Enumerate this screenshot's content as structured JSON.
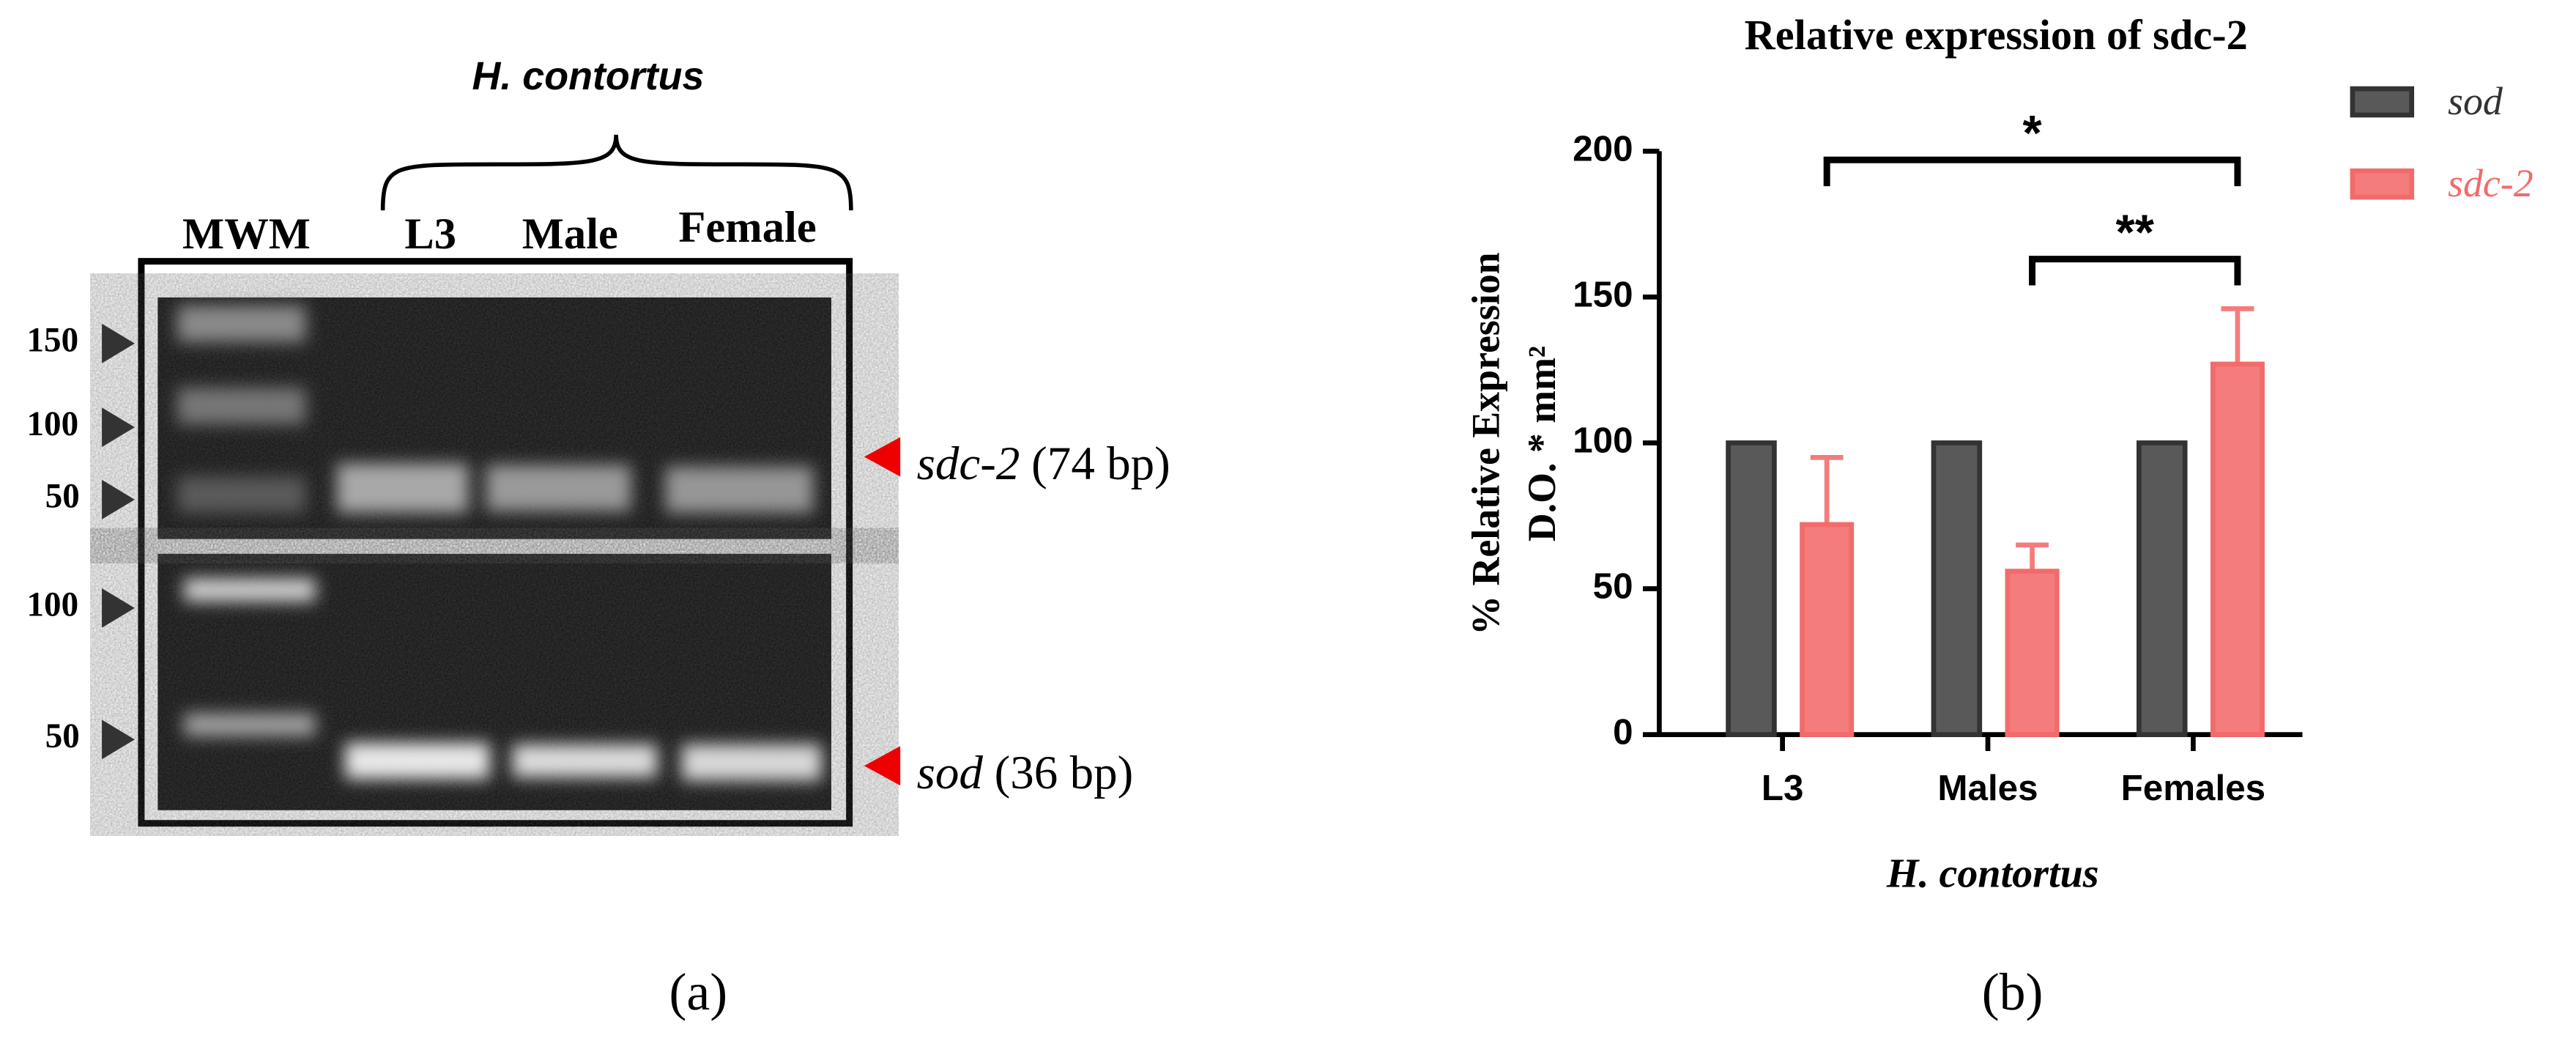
{
  "panel_labels": [
    "(a)",
    "(b)"
  ],
  "gel": {
    "species": "H. contortus",
    "lanes": [
      "MWM",
      "L3",
      "Male",
      "Female"
    ],
    "markers_upper": [
      "150",
      "100",
      "50"
    ],
    "markers_lower": [
      "100",
      "50"
    ],
    "products": [
      {
        "gene": "sdc-2",
        "size": "(74 bp)"
      },
      {
        "gene": "sod",
        "size": "(36 bp)"
      }
    ]
  },
  "chart_data": {
    "type": "bar",
    "title": "Relative expression of sdc-2",
    "ylabel": [
      "% Relative Expression",
      "D.O. * mm²"
    ],
    "xlabel": "H. contortus",
    "categories": [
      "L3",
      "Males",
      "Females"
    ],
    "series": [
      {
        "name": "sod",
        "color": "#595959",
        "values": [
          100,
          100,
          100
        ]
      },
      {
        "name": "sdc-2",
        "color": "#f47c7c",
        "values": [
          72,
          56,
          127
        ],
        "errors": [
          23,
          9,
          19
        ]
      }
    ],
    "ylim": [
      0,
      200
    ],
    "yticks": [
      0,
      50,
      100,
      150,
      200
    ],
    "annotations": [
      {
        "text": "*",
        "y": 197,
        "from": "L3",
        "to": "Females"
      },
      {
        "text": "**",
        "y": 163,
        "from": "Males",
        "to": "Females"
      }
    ]
  }
}
